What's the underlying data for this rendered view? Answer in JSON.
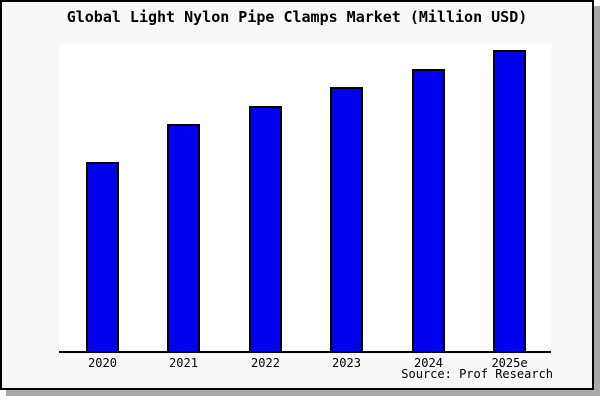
{
  "chart_data": {
    "type": "bar",
    "title": "Global Light Nylon Pipe Clamps Market (Million USD)",
    "categories": [
      "2020",
      "2021",
      "2022",
      "2023",
      "2024",
      "2025e"
    ],
    "values": [
      189,
      227,
      245,
      264,
      282,
      301
    ],
    "values_note": "relative units estimated from bar pixel heights; no y-axis scale or tick labels shown",
    "xlabel": "",
    "ylabel": "",
    "grid": false,
    "legend": "none",
    "bar_color": "#0000ee",
    "bar_border_color": "#000000",
    "axis_color": "#000000",
    "plot_background": "#ffffff",
    "canvas_background": "#f8f8f8",
    "frame_border_color": "#000000",
    "shadow_color": "#a9a9a9",
    "source": "Source: Prof Research"
  }
}
